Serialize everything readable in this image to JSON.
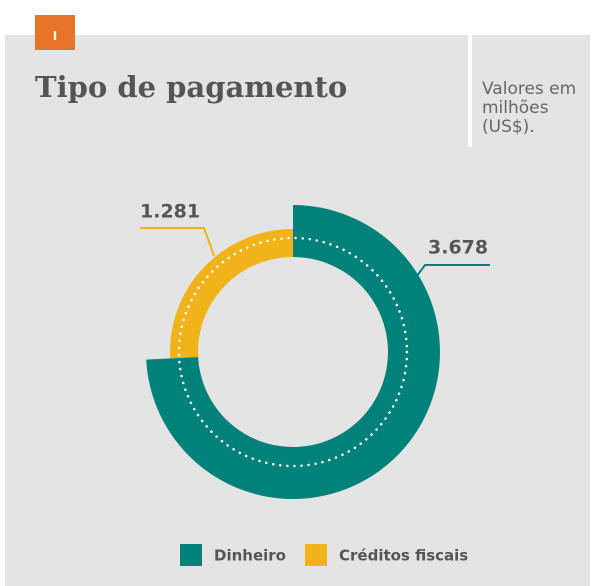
{
  "badge": "I",
  "chart_data": {
    "type": "donut",
    "title": "Tipo de pagamento",
    "subtitle": "Valores em milhões (US$).",
    "categories": [
      "Dinheiro",
      "Créditos fiscais"
    ],
    "values": [
      3678,
      1281
    ],
    "value_labels": [
      "3.678",
      "1.281"
    ],
    "colors": [
      "#00827a",
      "#f0b41a"
    ],
    "legend": "bottom"
  }
}
